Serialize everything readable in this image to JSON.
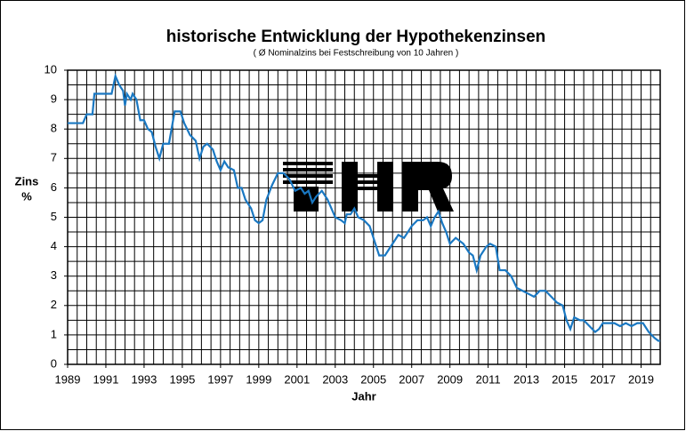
{
  "chart_data": {
    "type": "line",
    "title": "historische Entwicklung der Hypothekenzinsen",
    "subtitle": "( Ø Nominalzins bei Festschreibung  von 10 Jahren )",
    "ylabel": [
      "Zins",
      "%"
    ],
    "xlabel": "Jahr",
    "xlim": [
      1989,
      2020
    ],
    "ylim": [
      0,
      10
    ],
    "xticks": [
      1989,
      1991,
      1993,
      1995,
      1997,
      1999,
      2001,
      2003,
      2005,
      2007,
      2009,
      2011,
      2013,
      2015,
      2017,
      2019
    ],
    "yticks": [
      0,
      1,
      2,
      3,
      4,
      5,
      6,
      7,
      8,
      9,
      10
    ],
    "xgrid": [
      1989,
      1989.5,
      1990,
      1990.5,
      1991,
      1991.5,
      1992,
      1992.5,
      1993,
      1993.5,
      1994,
      1994.5,
      1995,
      1995.5,
      1996,
      1996.5,
      1997,
      1997.5,
      1998,
      1998.5,
      1999,
      1999.5,
      2000,
      2000.5,
      2001,
      2001.5,
      2002,
      2002.5,
      2003,
      2003.5,
      2004,
      2004.5,
      2005,
      2005.5,
      2006,
      2006.5,
      2007,
      2007.5,
      2008,
      2008.5,
      2009,
      2009.5,
      2010,
      2010.5,
      2011,
      2011.5,
      2012,
      2012.5,
      2013,
      2013.5,
      2014,
      2014.5,
      2015,
      2015.5,
      2016,
      2016.5,
      2017,
      2017.5,
      2018,
      2018.5,
      2019,
      2019.5,
      2020
    ],
    "ygrid": [
      0,
      0.5,
      1,
      1.5,
      2,
      2.5,
      3,
      3.5,
      4,
      4.5,
      5,
      5.5,
      6,
      6.5,
      7,
      7.5,
      8,
      8.5,
      9,
      9.5,
      10
    ],
    "grid": true,
    "color": "#1a78c2",
    "x": [
      1989.0,
      1989.8,
      1990.0,
      1990.3,
      1990.4,
      1991.0,
      1991.3,
      1991.5,
      1991.7,
      1991.9,
      1992.0,
      1992.1,
      1992.3,
      1992.4,
      1992.6,
      1992.8,
      1993.0,
      1993.2,
      1993.4,
      1993.6,
      1993.8,
      1994.0,
      1994.3,
      1994.6,
      1994.9,
      1995.1,
      1995.4,
      1995.7,
      1995.9,
      1996.1,
      1996.3,
      1996.6,
      1996.8,
      1997.0,
      1997.2,
      1997.4,
      1997.7,
      1997.9,
      1998.1,
      1998.3,
      1998.6,
      1998.8,
      1999.0,
      1999.2,
      1999.4,
      1999.7,
      2000.0,
      2000.3,
      2000.6,
      2000.9,
      2001.2,
      2001.4,
      2001.6,
      2001.8,
      2002.0,
      2002.3,
      2002.6,
      2002.8,
      2003.0,
      2003.3,
      2003.5,
      2003.6,
      2003.8,
      2004.0,
      2004.2,
      2004.5,
      2004.8,
      2005.0,
      2005.3,
      2005.6,
      2005.8,
      2006.1,
      2006.3,
      2006.6,
      2006.8,
      2007.0,
      2007.3,
      2007.6,
      2007.8,
      2008.0,
      2008.2,
      2008.4,
      2008.6,
      2008.8,
      2009.0,
      2009.3,
      2009.7,
      2010.0,
      2010.2,
      2010.4,
      2010.6,
      2010.9,
      2011.1,
      2011.4,
      2011.6,
      2011.9,
      2012.2,
      2012.5,
      2012.8,
      2013.1,
      2013.4,
      2013.7,
      2014.0,
      2014.3,
      2014.6,
      2014.9,
      2015.1,
      2015.3,
      2015.5,
      2015.8,
      2016.0,
      2016.3,
      2016.6,
      2016.8,
      2017.0,
      2017.3,
      2017.6,
      2017.9,
      2018.2,
      2018.5,
      2018.8,
      2019.1,
      2019.4,
      2019.7,
      2019.9,
      2020.0
    ],
    "values": [
      8.2,
      8.2,
      8.5,
      8.5,
      9.2,
      9.2,
      9.2,
      9.8,
      9.5,
      9.3,
      8.8,
      9.2,
      9.0,
      9.2,
      9.0,
      8.3,
      8.3,
      8.0,
      7.9,
      7.4,
      7.0,
      7.5,
      7.5,
      8.6,
      8.6,
      8.2,
      7.8,
      7.6,
      7.0,
      7.4,
      7.5,
      7.3,
      6.9,
      6.6,
      6.9,
      6.7,
      6.6,
      6.0,
      6.0,
      5.6,
      5.3,
      4.9,
      4.8,
      4.9,
      5.6,
      6.1,
      6.5,
      6.5,
      6.3,
      5.9,
      6.0,
      5.8,
      5.9,
      5.5,
      5.7,
      5.9,
      5.6,
      5.3,
      5.0,
      4.9,
      4.8,
      5.1,
      5.1,
      5.3,
      5.0,
      4.9,
      4.7,
      4.3,
      3.7,
      3.7,
      3.9,
      4.2,
      4.4,
      4.3,
      4.5,
      4.7,
      4.9,
      4.9,
      5.0,
      4.7,
      5.0,
      5.2,
      4.8,
      4.5,
      4.1,
      4.3,
      4.1,
      3.8,
      3.7,
      3.2,
      3.7,
      4.0,
      4.1,
      4.0,
      3.2,
      3.2,
      3.0,
      2.6,
      2.5,
      2.4,
      2.3,
      2.5,
      2.5,
      2.3,
      2.1,
      2.0,
      1.5,
      1.2,
      1.6,
      1.5,
      1.5,
      1.3,
      1.1,
      1.2,
      1.4,
      1.4,
      1.4,
      1.3,
      1.4,
      1.3,
      1.4,
      1.4,
      1.1,
      0.9,
      0.8,
      0.8
    ]
  }
}
